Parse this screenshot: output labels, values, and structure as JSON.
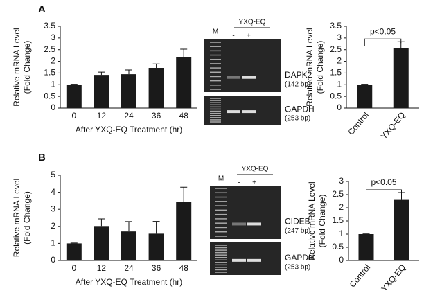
{
  "panel_labels": [
    "A",
    "B"
  ],
  "gels": [
    {
      "header": "YXQ-EQ",
      "marker": "M",
      "lanes": [
        "-",
        "+"
      ],
      "bands": [
        {
          "gene": "DAPK2",
          "size": "(142 bp)"
        },
        {
          "gene": "GAPDH",
          "size": "(253 bp)"
        }
      ]
    },
    {
      "header": "YXQ-EQ",
      "marker": "M",
      "lanes": [
        "-",
        "+"
      ],
      "bands": [
        {
          "gene": "CIDEB",
          "size": "(247 bp)"
        },
        {
          "gene": "GAPDH",
          "size": "(253 bp)"
        }
      ]
    }
  ],
  "chart_data": [
    {
      "type": "bar",
      "ylabel": [
        "Relative mRNA Level",
        "(Fold Change)"
      ],
      "xlabel": "After YXQ-EQ Treatment (hr)",
      "categories": [
        "0",
        "12",
        "24",
        "36",
        "48"
      ],
      "values": [
        1.0,
        1.42,
        1.45,
        1.72,
        2.17
      ],
      "errors": [
        0.02,
        0.12,
        0.18,
        0.17,
        0.35
      ],
      "color": "#1a1a1a",
      "ylim": [
        0,
        3.5
      ],
      "yticks": [
        0,
        0.5,
        1,
        1.5,
        2,
        2.5,
        3,
        3.5
      ]
    },
    {
      "type": "bar",
      "ylabel": [
        "Relative mRNA Level",
        "(Fold Change)"
      ],
      "annotation": "p<0.05",
      "categories": [
        "Control",
        "YXQ-EQ"
      ],
      "values": [
        1.0,
        2.57
      ],
      "errors": [
        0.02,
        0.27
      ],
      "color": "#1a1a1a",
      "ylim": [
        0,
        3.5
      ],
      "yticks": [
        0,
        0.5,
        1,
        1.5,
        2,
        2.5,
        3,
        3.5
      ]
    },
    {
      "type": "bar",
      "ylabel": [
        "Relative mRNA Level",
        "(Fold Change)"
      ],
      "xlabel": "After YXQ-EQ Treatment (hr)",
      "categories": [
        "0",
        "12",
        "24",
        "36",
        "48"
      ],
      "values": [
        1.0,
        2.02,
        1.7,
        1.57,
        3.42
      ],
      "errors": [
        0.02,
        0.42,
        0.58,
        0.72,
        0.88
      ],
      "color": "#1a1a1a",
      "ylim": [
        0,
        5
      ],
      "yticks": [
        0,
        1,
        2,
        3,
        4,
        5
      ]
    },
    {
      "type": "bar",
      "ylabel": [
        "Relative mRNA Level",
        "(Fold Change)"
      ],
      "annotation": "p<0.05",
      "categories": [
        "Control",
        "YXQ-EQ"
      ],
      "values": [
        1.0,
        2.3
      ],
      "errors": [
        0.02,
        0.28
      ],
      "color": "#1a1a1a",
      "ylim": [
        0,
        3
      ],
      "yticks": [
        0,
        0.5,
        1,
        1.5,
        2,
        2.5,
        3
      ]
    }
  ]
}
